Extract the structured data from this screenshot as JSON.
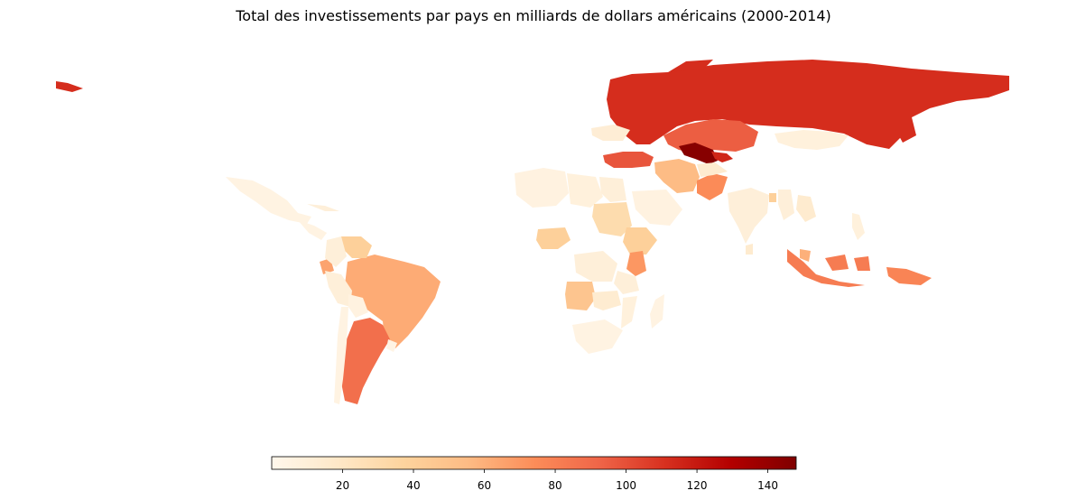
{
  "title": "Total des investissements par pays en milliards de dollars américains (2000-2014)",
  "colormap": {
    "name": "OrRd",
    "min": 0,
    "max": 148,
    "stops": [
      "#fff7ec",
      "#fee8c8",
      "#fdd49e",
      "#fdbb84",
      "#fc8d59",
      "#ef6548",
      "#d7301f",
      "#b30000",
      "#7f0000"
    ]
  },
  "colorbar": {
    "ticks": [
      20,
      40,
      60,
      80,
      100,
      120,
      140
    ],
    "tick_labels": [
      "20",
      "40",
      "60",
      "80",
      "100",
      "120",
      "140"
    ]
  },
  "countries": [
    {
      "name": "Russia",
      "value": 112
    },
    {
      "name": "Kazakhstan",
      "value": 95
    },
    {
      "name": "Turkmenistan",
      "value": 145
    },
    {
      "name": "Uzbekistan",
      "value": 115
    },
    {
      "name": "Turkey",
      "value": 98
    },
    {
      "name": "Iran",
      "value": 55
    },
    {
      "name": "Pakistan",
      "value": 75
    },
    {
      "name": "Afghanistan",
      "value": 15
    },
    {
      "name": "Mongolia",
      "value": 8
    },
    {
      "name": "Ukraine",
      "value": 12
    },
    {
      "name": "Brazil",
      "value": 62
    },
    {
      "name": "Argentina",
      "value": 88
    },
    {
      "name": "Venezuela",
      "value": 40
    },
    {
      "name": "Ecuador",
      "value": 65
    },
    {
      "name": "Colombia",
      "value": 10
    },
    {
      "name": "Peru",
      "value": 10
    },
    {
      "name": "Bolivia",
      "value": 6
    },
    {
      "name": "Chile",
      "value": 5
    },
    {
      "name": "Uruguay",
      "value": 4
    },
    {
      "name": "Mexico",
      "value": 5
    },
    {
      "name": "Central America",
      "value": 5
    },
    {
      "name": "Cuba",
      "value": 10
    },
    {
      "name": "Algeria",
      "value": 6
    },
    {
      "name": "Libya",
      "value": 8
    },
    {
      "name": "Egypt",
      "value": 10
    },
    {
      "name": "Sudan",
      "value": 30
    },
    {
      "name": "Ethiopia",
      "value": 40
    },
    {
      "name": "Kenya",
      "value": 70
    },
    {
      "name": "Nigeria",
      "value": 40
    },
    {
      "name": "Angola",
      "value": 48
    },
    {
      "name": "Congo DR",
      "value": 10
    },
    {
      "name": "Tanzania",
      "value": 10
    },
    {
      "name": "Zambia",
      "value": 14
    },
    {
      "name": "Mozambique",
      "value": 8
    },
    {
      "name": "South Africa",
      "value": 5
    },
    {
      "name": "Madagascar",
      "value": 5
    },
    {
      "name": "Saudi Arabia",
      "value": 6
    },
    {
      "name": "India",
      "value": 10
    },
    {
      "name": "Bangladesh",
      "value": 40
    },
    {
      "name": "Myanmar",
      "value": 10
    },
    {
      "name": "Laos",
      "value": 15
    },
    {
      "name": "Indonesia",
      "value": 82
    },
    {
      "name": "Malaysia",
      "value": 60
    },
    {
      "name": "Philippines",
      "value": 8
    },
    {
      "name": "Papua New Guinea",
      "value": 78
    },
    {
      "name": "Sri Lanka",
      "value": 15
    }
  ]
}
